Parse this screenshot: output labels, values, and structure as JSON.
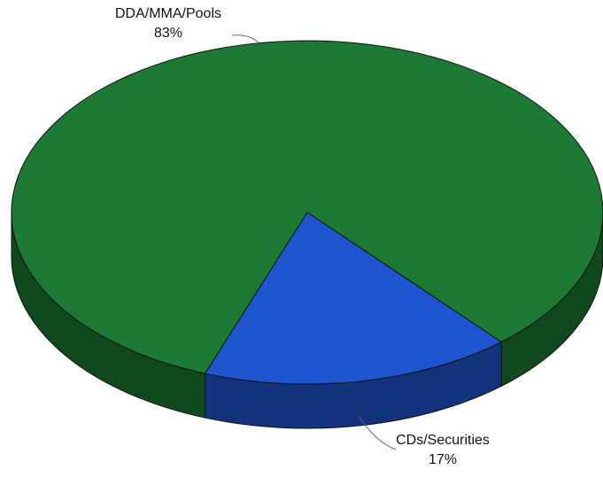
{
  "chart_data": {
    "type": "pie",
    "categories": [
      "DDA/MMA/Pools",
      "CDs/Securities"
    ],
    "values": [
      83,
      17
    ],
    "value_labels": [
      "83%",
      "17%"
    ],
    "colors": [
      "#1c7a34",
      "#1f55cf"
    ]
  }
}
